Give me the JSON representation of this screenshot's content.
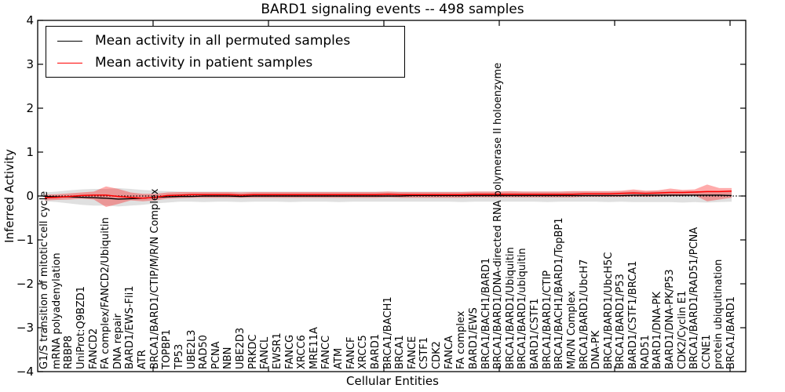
{
  "chart_data": {
    "type": "line",
    "title": "BARD1 signaling events -- 498 samples",
    "xlabel": "Cellular Entities",
    "ylabel": "Inferred Activity",
    "ylim": [
      -4,
      4
    ],
    "grid": false,
    "legend_position": "upper-left",
    "zero_line": "dotted-black",
    "yticks": [
      {
        "label": "4",
        "value": 4
      },
      {
        "label": "3",
        "value": 3
      },
      {
        "label": "2",
        "value": 2
      },
      {
        "label": "1",
        "value": 1
      },
      {
        "label": "0",
        "value": 0
      },
      {
        "label": "−1",
        "value": -1
      },
      {
        "label": "−2",
        "value": -2
      },
      {
        "label": "−3",
        "value": -3
      },
      {
        "label": "−4",
        "value": -4
      }
    ],
    "categories": [
      "G1/S transition of mitotic cell cycle",
      "mRNA polyadenylation",
      "RBBP8",
      "UniProt:Q9BZD1",
      "FANCD2",
      "FA complex/FANCD2/Ubiquitin",
      "DNA repair",
      "BARD1/EWS-Fli1",
      "ATR",
      "BRCA1/BARD1/CTIP/M/R/N Complex",
      "TOPBP1",
      "TP53",
      "UBE2L3",
      "RAD50",
      "PCNA",
      "NBN",
      "UBE2D3",
      "PRKDC",
      "FANCL",
      "EWSR1",
      "FANCG",
      "XRCC6",
      "MRE11A",
      "FANCC",
      "ATM",
      "FANCF",
      "XRCC5",
      "BARD1",
      "BRCA1/BACH1",
      "BRCA1",
      "FANCE",
      "CSTF1",
      "CDK2",
      "FANCA",
      "FA complex",
      "BARD1/EWS",
      "BRCA1/BACH1/BARD1",
      "BRCA1/BARD1/DNA-directed RNA polymerase II holoenzyme",
      "BRCA1/BARD1/Ubiquitin",
      "BRCA1/BARD1/ubiquitin",
      "BARD1/CSTF1",
      "BRCA1/BARD1/CTIP",
      "BRCA1/BACH1/BARD1/TopBP1",
      "M/R/N Complex",
      "BRCA1/BARD1/UbcH7",
      "DNA-PK",
      "BRCA1/BARD1/UbcH5C",
      "BRCA1/BARD1/P53",
      "BARD1/CSTF1/BRCA1",
      "RAD51",
      "BARD1/DNA-PK",
      "BARD1/DNA-PK/P53",
      "CDK2/Cyclin E1",
      "BRCA1/BARD1/RAD51/PCNA",
      "CCNE1",
      "protein ubiquitination",
      "BRCA1/BARD1"
    ],
    "series": [
      {
        "name": "Mean activity in all permuted samples",
        "color": "#000000",
        "band_color": "#000000",
        "band_opacity": 0.12,
        "values": [
          -0.01,
          -0.02,
          -0.02,
          -0.03,
          -0.04,
          -0.05,
          -0.07,
          -0.06,
          -0.05,
          -0.03,
          -0.02,
          -0.01,
          -0.01,
          0,
          0,
          0,
          -0.01,
          0,
          0,
          0,
          0,
          0,
          0,
          0,
          0,
          0,
          0,
          0,
          0,
          0,
          0.01,
          0.01,
          0.01,
          0.01,
          0.01,
          0.01,
          0.01,
          0.01,
          0.01,
          0.01,
          0.01,
          0.01,
          0.01,
          0.01,
          0.01,
          0.01,
          0.01,
          0.01,
          0.02,
          0.02,
          0.02,
          0.02,
          0.02,
          0.02,
          0.02,
          0.02,
          0.01
        ],
        "band_upper": [
          0.08,
          0.1,
          0.13,
          0.15,
          0.16,
          0.16,
          0.18,
          0.16,
          0.14,
          0.12,
          0.11,
          0.1,
          0.1,
          0.1,
          0.1,
          0.1,
          0.1,
          0.1,
          0.1,
          0.1,
          0.1,
          0.1,
          0.1,
          0.1,
          0.1,
          0.1,
          0.1,
          0.1,
          0.1,
          0.1,
          0.1,
          0.1,
          0.1,
          0.1,
          0.1,
          0.1,
          0.1,
          0.1,
          0.1,
          0.1,
          0.1,
          0.1,
          0.1,
          0.1,
          0.1,
          0.1,
          0.1,
          0.1,
          0.11,
          0.1,
          0.11,
          0.11,
          0.11,
          0.11,
          0.12,
          0.11,
          0.11
        ],
        "band_lower": [
          -0.12,
          -0.14,
          -0.17,
          -0.2,
          -0.22,
          -0.22,
          -0.24,
          -0.22,
          -0.2,
          -0.17,
          -0.15,
          -0.13,
          -0.13,
          -0.14,
          -0.13,
          -0.13,
          -0.14,
          -0.13,
          -0.13,
          -0.13,
          -0.14,
          -0.13,
          -0.13,
          -0.13,
          -0.14,
          -0.13,
          -0.13,
          -0.13,
          -0.13,
          -0.13,
          -0.13,
          -0.13,
          -0.13,
          -0.13,
          -0.14,
          -0.13,
          -0.13,
          -0.13,
          -0.13,
          -0.13,
          -0.13,
          -0.14,
          -0.13,
          -0.13,
          -0.13,
          -0.13,
          -0.14,
          -0.13,
          -0.14,
          -0.14,
          -0.14,
          -0.14,
          -0.15,
          -0.14,
          -0.15,
          -0.14,
          -0.13
        ]
      },
      {
        "name": "Mean activity in patient samples",
        "color": "#ff0000",
        "band_color": "#ff0000",
        "band_opacity": 0.33,
        "values": [
          -0.04,
          -0.03,
          -0.01,
          0.01,
          0.02,
          0.02,
          -0.01,
          -0.03,
          -0.05,
          -0.03,
          0.01,
          0.02,
          0.03,
          0.03,
          0.03,
          0.03,
          0.02,
          0.03,
          0.03,
          0.03,
          0.03,
          0.03,
          0.03,
          0.03,
          0.03,
          0.03,
          0.03,
          0.03,
          0.04,
          0.03,
          0.03,
          0.03,
          0.03,
          0.03,
          0.03,
          0.04,
          0.04,
          0.04,
          0.04,
          0.04,
          0.04,
          0.04,
          0.04,
          0.04,
          0.05,
          0.05,
          0.05,
          0.06,
          0.07,
          0.06,
          0.07,
          0.08,
          0.08,
          0.09,
          0.1,
          0.1,
          0.11
        ],
        "band_upper": [
          0.03,
          0.04,
          0.06,
          0.08,
          0.1,
          0.22,
          0.16,
          0.08,
          0.05,
          0.05,
          0.08,
          0.09,
          0.09,
          0.09,
          0.09,
          0.09,
          0.08,
          0.09,
          0.09,
          0.09,
          0.09,
          0.09,
          0.09,
          0.09,
          0.09,
          0.09,
          0.09,
          0.09,
          0.1,
          0.09,
          0.09,
          0.09,
          0.09,
          0.09,
          0.09,
          0.1,
          0.1,
          0.1,
          0.11,
          0.1,
          0.1,
          0.1,
          0.1,
          0.11,
          0.11,
          0.11,
          0.11,
          0.12,
          0.15,
          0.12,
          0.13,
          0.17,
          0.14,
          0.15,
          0.26,
          0.18,
          0.18
        ],
        "band_lower": [
          -0.1,
          -0.09,
          -0.08,
          -0.06,
          -0.08,
          -0.25,
          -0.18,
          -0.1,
          -0.12,
          -0.1,
          -0.06,
          -0.05,
          -0.04,
          -0.04,
          -0.04,
          -0.04,
          -0.04,
          -0.04,
          -0.04,
          -0.04,
          -0.04,
          -0.04,
          -0.04,
          -0.04,
          -0.04,
          -0.04,
          -0.04,
          -0.04,
          -0.03,
          -0.04,
          -0.04,
          -0.04,
          -0.04,
          -0.04,
          -0.04,
          -0.03,
          -0.03,
          -0.03,
          -0.03,
          -0.03,
          -0.03,
          -0.03,
          -0.03,
          -0.03,
          -0.02,
          -0.02,
          -0.02,
          -0.02,
          -0.01,
          -0.02,
          -0.01,
          0.0,
          0.0,
          0.01,
          -0.12,
          -0.08,
          -0.04
        ]
      }
    ]
  }
}
